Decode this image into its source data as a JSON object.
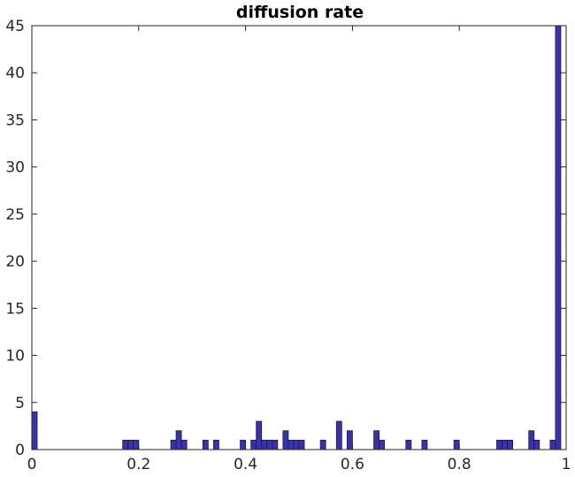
{
  "chart_data": {
    "type": "bar",
    "title": "diffusion rate",
    "xlabel": "",
    "ylabel": "",
    "xlim": [
      0,
      1
    ],
    "ylim": [
      0,
      45
    ],
    "bin_width": 0.01,
    "grid": false,
    "bar_color": "#3a33a6",
    "bar_edge_color": "#1a1a4a",
    "xticks": [
      {
        "value": 0,
        "label": "0"
      },
      {
        "value": 0.2,
        "label": "0.2"
      },
      {
        "value": 0.4,
        "label": "0.4"
      },
      {
        "value": 0.6,
        "label": "0.6"
      },
      {
        "value": 0.8,
        "label": "0.8"
      },
      {
        "value": 1,
        "label": "1"
      }
    ],
    "yticks": [
      {
        "value": 0,
        "label": "0"
      },
      {
        "value": 5,
        "label": "5"
      },
      {
        "value": 10,
        "label": "10"
      },
      {
        "value": 15,
        "label": "15"
      },
      {
        "value": 20,
        "label": "20"
      },
      {
        "value": 25,
        "label": "25"
      },
      {
        "value": 30,
        "label": "30"
      },
      {
        "value": 35,
        "label": "35"
      },
      {
        "value": 40,
        "label": "40"
      },
      {
        "value": 45,
        "label": "45"
      }
    ],
    "bins": [
      {
        "x": 0.005,
        "count": 4
      },
      {
        "x": 0.185,
        "count": 1
      },
      {
        "x": 0.195,
        "count": 1
      },
      {
        "x": 0.175,
        "count": 1
      },
      {
        "x": 0.265,
        "count": 1
      },
      {
        "x": 0.275,
        "count": 2
      },
      {
        "x": 0.285,
        "count": 1
      },
      {
        "x": 0.325,
        "count": 1
      },
      {
        "x": 0.345,
        "count": 1
      },
      {
        "x": 0.395,
        "count": 1
      },
      {
        "x": 0.415,
        "count": 1
      },
      {
        "x": 0.425,
        "count": 3
      },
      {
        "x": 0.435,
        "count": 1
      },
      {
        "x": 0.445,
        "count": 1
      },
      {
        "x": 0.455,
        "count": 1
      },
      {
        "x": 0.475,
        "count": 2
      },
      {
        "x": 0.485,
        "count": 1
      },
      {
        "x": 0.495,
        "count": 1
      },
      {
        "x": 0.505,
        "count": 1
      },
      {
        "x": 0.545,
        "count": 1
      },
      {
        "x": 0.575,
        "count": 3
      },
      {
        "x": 0.595,
        "count": 2
      },
      {
        "x": 0.645,
        "count": 2
      },
      {
        "x": 0.655,
        "count": 1
      },
      {
        "x": 0.705,
        "count": 1
      },
      {
        "x": 0.735,
        "count": 1
      },
      {
        "x": 0.795,
        "count": 1
      },
      {
        "x": 0.875,
        "count": 1
      },
      {
        "x": 0.885,
        "count": 1
      },
      {
        "x": 0.895,
        "count": 1
      },
      {
        "x": 0.935,
        "count": 2
      },
      {
        "x": 0.945,
        "count": 1
      },
      {
        "x": 0.975,
        "count": 1
      },
      {
        "x": 0.985,
        "count": 45
      }
    ]
  }
}
